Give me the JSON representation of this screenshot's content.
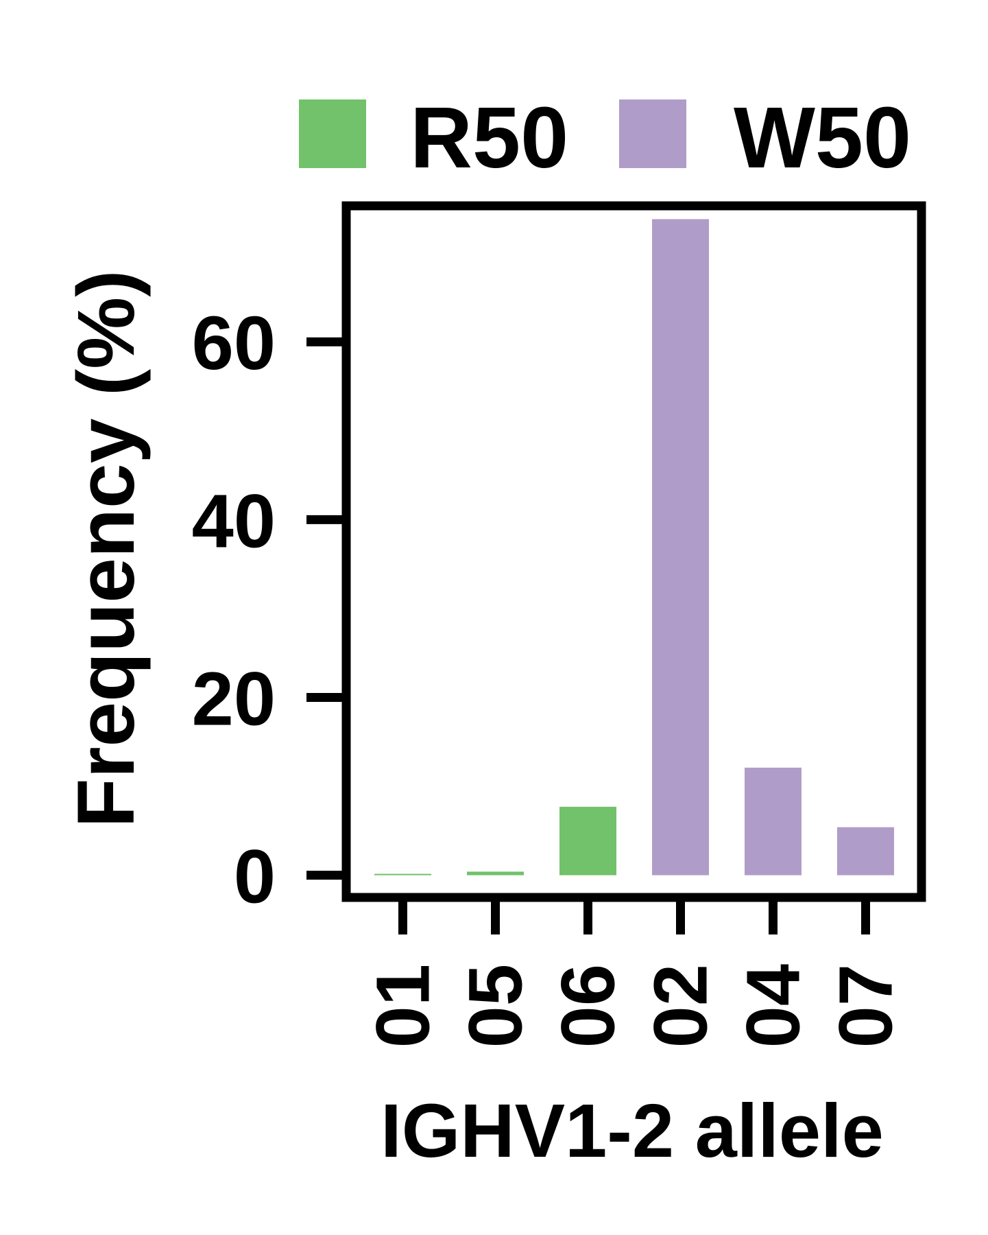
{
  "chart_data": {
    "type": "bar",
    "title": "",
    "xlabel": "IGHV1-2 allele",
    "ylabel": "Frequency (%)",
    "categories": [
      "01",
      "05",
      "06",
      "02",
      "04",
      "07"
    ],
    "values": [
      0.1,
      0.4,
      7.7,
      73.8,
      12.1,
      5.4
    ],
    "bar_series": [
      "R50",
      "R50",
      "R50",
      "W50",
      "W50",
      "W50"
    ],
    "ylim": [
      -2.5,
      75.3
    ],
    "yticks": [
      0,
      20,
      40,
      60
    ],
    "legend": {
      "position": "top",
      "items": [
        {
          "name": "R50",
          "color": "#72c16b"
        },
        {
          "name": "W50",
          "color": "#b09cc9"
        }
      ]
    },
    "colors": {
      "R50": "#72c16b",
      "W50": "#b09cc9"
    },
    "grid": false
  }
}
